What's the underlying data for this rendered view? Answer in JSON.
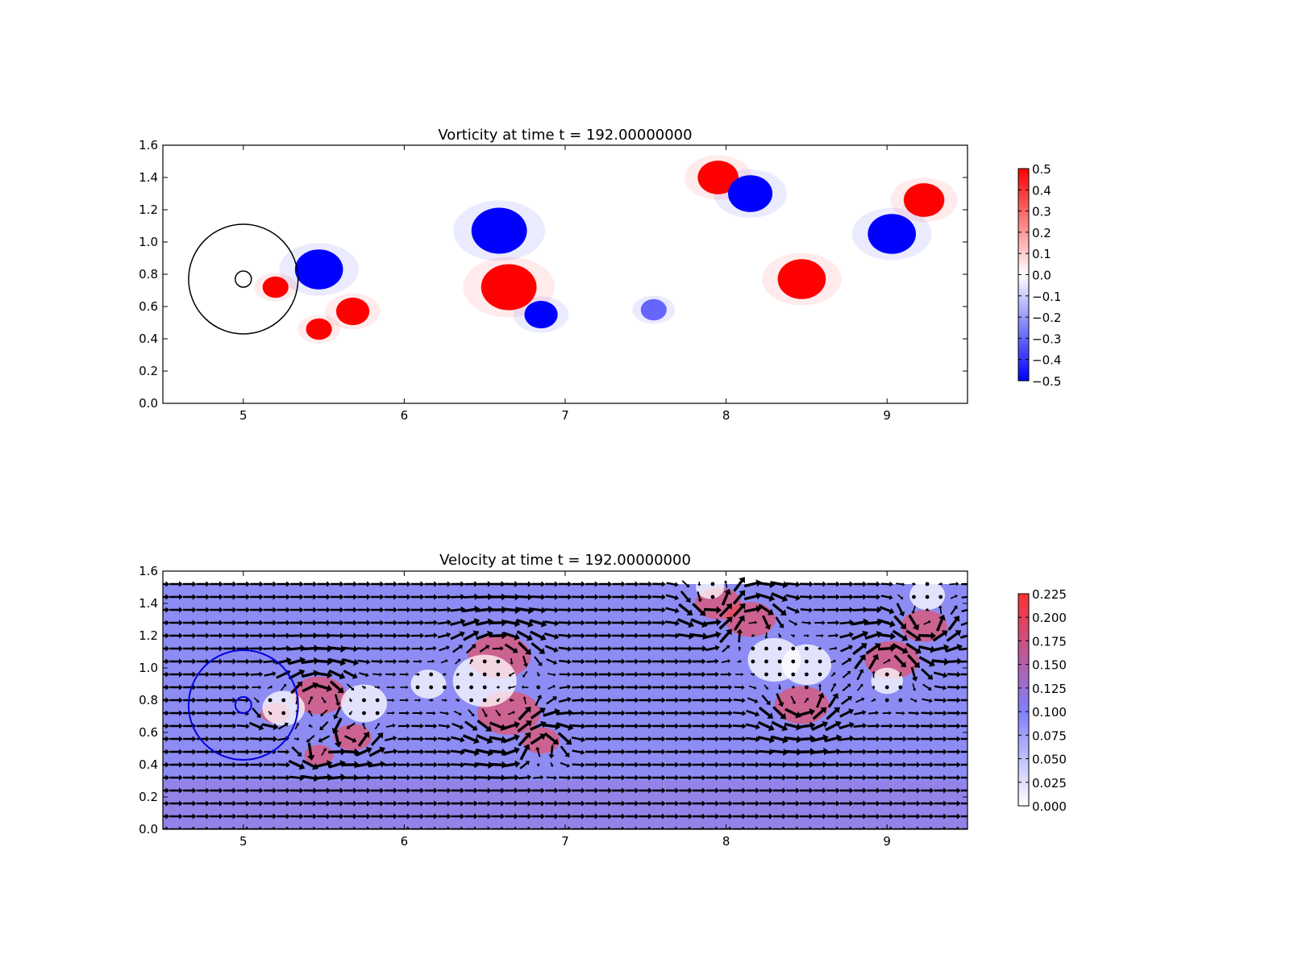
{
  "chart_data": [
    {
      "type": "heatmap",
      "title": "Vorticity at time t =   192.00000000",
      "xlim": [
        4.5,
        9.5
      ],
      "ylim": [
        0.0,
        1.6
      ],
      "x_ticks": [
        "5",
        "6",
        "7",
        "8",
        "9"
      ],
      "y_ticks": [
        "0.0",
        "0.2",
        "0.4",
        "0.6",
        "0.8",
        "1.0",
        "1.2",
        "1.4",
        "1.6"
      ],
      "colorbar": {
        "range": [
          -0.5,
          0.5
        ],
        "ticks": [
          "0.5",
          "0.4",
          "0.3",
          "0.2",
          "0.1",
          "0.0",
          "−0.1",
          "−0.2",
          "−0.3",
          "−0.4",
          "−0.5"
        ],
        "colors": {
          "min": "#0000ff",
          "mid": "#ffffff",
          "max": "#ff0000"
        }
      },
      "circles": [
        {
          "cx": 5.0,
          "cy": 0.77,
          "r": 0.34,
          "color": "#000000"
        },
        {
          "cx": 5.0,
          "cy": 0.77,
          "r": 0.05,
          "color": "#000000"
        }
      ],
      "vortices": [
        {
          "x": 5.47,
          "y": 0.83,
          "r": 0.13,
          "value": -0.5
        },
        {
          "x": 5.2,
          "y": 0.72,
          "r": 0.07,
          "value": 0.5
        },
        {
          "x": 5.68,
          "y": 0.57,
          "r": 0.09,
          "value": 0.5
        },
        {
          "x": 5.47,
          "y": 0.46,
          "r": 0.07,
          "value": 0.5
        },
        {
          "x": 6.59,
          "y": 1.07,
          "r": 0.15,
          "value": -0.5
        },
        {
          "x": 6.65,
          "y": 0.72,
          "r": 0.15,
          "value": 0.5
        },
        {
          "x": 6.85,
          "y": 0.55,
          "r": 0.09,
          "value": -0.5
        },
        {
          "x": 7.55,
          "y": 0.58,
          "r": 0.07,
          "value": -0.3
        },
        {
          "x": 7.95,
          "y": 1.4,
          "r": 0.11,
          "value": 0.5
        },
        {
          "x": 8.15,
          "y": 1.3,
          "r": 0.12,
          "value": -0.5
        },
        {
          "x": 8.47,
          "y": 0.77,
          "r": 0.13,
          "value": 0.5
        },
        {
          "x": 9.03,
          "y": 1.05,
          "r": 0.13,
          "value": -0.5
        },
        {
          "x": 9.23,
          "y": 1.26,
          "r": 0.11,
          "value": 0.5
        }
      ]
    },
    {
      "type": "heatmap",
      "title": "Velocity at time t =   192.00000000",
      "xlim": [
        4.5,
        9.5
      ],
      "ylim": [
        0.0,
        1.6
      ],
      "x_ticks": [
        "5",
        "6",
        "7",
        "8",
        "9"
      ],
      "y_ticks": [
        "0.0",
        "0.2",
        "0.4",
        "0.6",
        "0.8",
        "1.0",
        "1.2",
        "1.4",
        "1.6"
      ],
      "colorbar": {
        "range": [
          0.0,
          0.225
        ],
        "ticks": [
          "0.225",
          "0.200",
          "0.175",
          "0.150",
          "0.125",
          "0.100",
          "0.075",
          "0.050",
          "0.025",
          "0.000"
        ],
        "colors": {
          "min": "#ffffff",
          "mid": "#8080ff",
          "max": "#ff3030"
        }
      },
      "base_speed": 0.1,
      "field_top": 1.52,
      "circles": [
        {
          "cx": 5.0,
          "cy": 0.77,
          "r": 0.34,
          "color": "#0000dd"
        },
        {
          "cx": 5.0,
          "cy": 0.77,
          "r": 0.05,
          "color": "#0000dd"
        }
      ],
      "vortices": [
        {
          "x": 5.47,
          "y": 0.83,
          "r": 0.13,
          "gamma": -1
        },
        {
          "x": 5.2,
          "y": 0.72,
          "r": 0.07,
          "gamma": 0.6
        },
        {
          "x": 5.68,
          "y": 0.57,
          "r": 0.09,
          "gamma": 0.8
        },
        {
          "x": 5.47,
          "y": 0.46,
          "r": 0.07,
          "gamma": 0.6
        },
        {
          "x": 6.59,
          "y": 1.07,
          "r": 0.15,
          "gamma": -1
        },
        {
          "x": 6.65,
          "y": 0.72,
          "r": 0.15,
          "gamma": 1
        },
        {
          "x": 6.85,
          "y": 0.55,
          "r": 0.09,
          "gamma": -0.8
        },
        {
          "x": 7.95,
          "y": 1.4,
          "r": 0.11,
          "gamma": 1
        },
        {
          "x": 8.15,
          "y": 1.3,
          "r": 0.12,
          "gamma": -1
        },
        {
          "x": 8.47,
          "y": 0.77,
          "r": 0.13,
          "gamma": 1
        },
        {
          "x": 9.03,
          "y": 1.05,
          "r": 0.13,
          "gamma": -1
        },
        {
          "x": 9.23,
          "y": 1.26,
          "r": 0.11,
          "gamma": 1
        }
      ],
      "slow_regions": [
        {
          "x": 5.25,
          "y": 0.75,
          "r": 0.12
        },
        {
          "x": 5.75,
          "y": 0.78,
          "r": 0.13
        },
        {
          "x": 6.5,
          "y": 0.92,
          "r": 0.18
        },
        {
          "x": 6.15,
          "y": 0.9,
          "r": 0.1
        },
        {
          "x": 8.3,
          "y": 1.05,
          "r": 0.15
        },
        {
          "x": 8.5,
          "y": 1.02,
          "r": 0.14
        },
        {
          "x": 7.9,
          "y": 1.5,
          "r": 0.08
        },
        {
          "x": 9.25,
          "y": 1.45,
          "r": 0.1
        },
        {
          "x": 9.0,
          "y": 0.92,
          "r": 0.09
        }
      ]
    }
  ]
}
